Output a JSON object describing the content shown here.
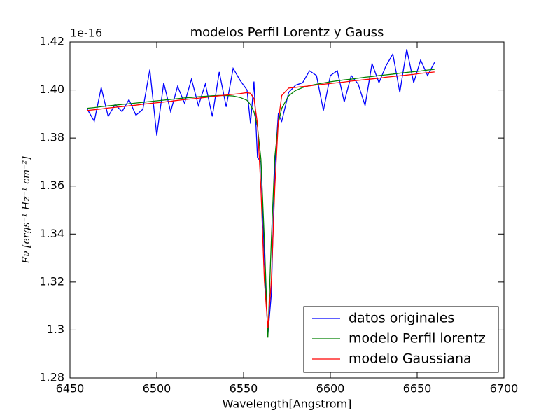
{
  "chart_data": {
    "type": "line",
    "title": "modelos Perfil Lorentz y Gauss",
    "x_label": "Wavelength[Angstrom]",
    "y_label": "Fν [ergs⁻¹ Hz⁻¹ cm⁻²]",
    "y_offset_label": "1e-16",
    "x": [
      6460,
      6464,
      6468,
      6472,
      6476,
      6480,
      6484,
      6488,
      6492,
      6496,
      6500,
      6504,
      6508,
      6512,
      6516,
      6520,
      6524,
      6528,
      6532,
      6536,
      6540,
      6544,
      6548,
      6552,
      6554,
      6556,
      6558,
      6560,
      6562,
      6564,
      6566,
      6568,
      6570,
      6572,
      6576,
      6580,
      6584,
      6588,
      6592,
      6596,
      6600,
      6604,
      6608,
      6612,
      6616,
      6620,
      6624,
      6628,
      6632,
      6636,
      6640,
      6644,
      6648,
      6652,
      6656,
      6660
    ],
    "series": [
      {
        "name": "datos originales",
        "color": "#0000ff",
        "values": [
          1.392,
          1.387,
          1.401,
          1.389,
          1.394,
          1.391,
          1.396,
          1.3895,
          1.392,
          1.4085,
          1.381,
          1.403,
          1.391,
          1.4015,
          1.3945,
          1.4045,
          1.3935,
          1.4025,
          1.389,
          1.4075,
          1.393,
          1.409,
          1.404,
          1.4,
          1.386,
          1.4035,
          1.372,
          1.37,
          1.33,
          1.298,
          1.315,
          1.368,
          1.39,
          1.387,
          1.399,
          1.402,
          1.403,
          1.408,
          1.406,
          1.3915,
          1.406,
          1.408,
          1.395,
          1.406,
          1.4025,
          1.3935,
          1.411,
          1.403,
          1.41,
          1.415,
          1.399,
          1.417,
          1.403,
          1.4125,
          1.406,
          1.4115
        ]
      },
      {
        "name": "modelo Perfil lorentz",
        "color": "#008000",
        "values": [
          1.3924,
          1.3927,
          1.3931,
          1.3934,
          1.3937,
          1.394,
          1.3943,
          1.3946,
          1.3949,
          1.3952,
          1.3955,
          1.3958,
          1.3961,
          1.3964,
          1.3967,
          1.3969,
          1.3972,
          1.3974,
          1.3976,
          1.3977,
          1.3977,
          1.3975,
          1.3969,
          1.3957,
          1.3939,
          1.3909,
          1.3849,
          1.3712,
          1.3372,
          1.2968,
          1.3377,
          1.3721,
          1.3861,
          1.3924,
          1.3976,
          1.3998,
          1.401,
          1.4018,
          1.4024,
          1.4029,
          1.4034,
          1.4038,
          1.4042,
          1.4045,
          1.4049,
          1.4053,
          1.4056,
          1.406,
          1.4063,
          1.4066,
          1.407,
          1.4073,
          1.4076,
          1.4079,
          1.4083,
          1.4086
        ]
      },
      {
        "name": "modelo Gaussiana",
        "color": "#ff0000",
        "values": [
          1.3915,
          1.3918,
          1.3921,
          1.3925,
          1.3928,
          1.3931,
          1.3934,
          1.3937,
          1.3941,
          1.3944,
          1.3947,
          1.395,
          1.3953,
          1.3957,
          1.396,
          1.3963,
          1.3966,
          1.3969,
          1.3973,
          1.3976,
          1.3979,
          1.3982,
          1.3985,
          1.3989,
          1.3986,
          1.3964,
          1.386,
          1.3588,
          1.3204,
          1.3008,
          1.3207,
          1.3595,
          1.3869,
          1.3977,
          1.4008,
          1.4011,
          1.4014,
          1.4017,
          1.4021,
          1.4024,
          1.4027,
          1.403,
          1.4033,
          1.4037,
          1.404,
          1.4043,
          1.4046,
          1.4049,
          1.4053,
          1.4056,
          1.4059,
          1.4062,
          1.4065,
          1.4069,
          1.4072,
          1.4075
        ]
      }
    ],
    "xlim": [
      6450,
      6700
    ],
    "xticks": [
      6450,
      6500,
      6550,
      6600,
      6650,
      6700
    ],
    "ylim": [
      1.28,
      1.42
    ],
    "yticks": [
      1.28,
      1.3,
      1.32,
      1.34,
      1.36,
      1.38,
      {
        "value": 1.4,
        "label": "1.40"
      },
      1.42
    ],
    "legend": "lower right",
    "grid": false
  }
}
